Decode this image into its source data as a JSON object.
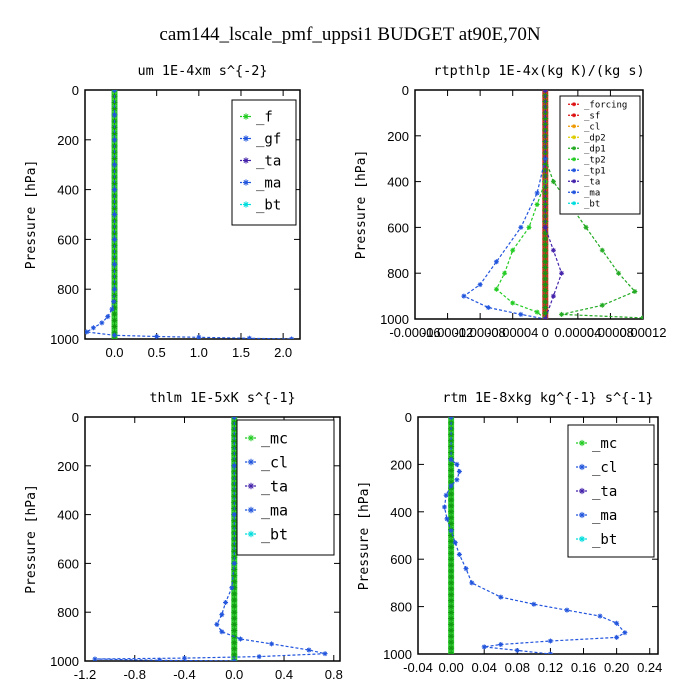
{
  "title": "cam144_lscale_pmf_uppsi1  BUDGET at90E,70N",
  "colors": {
    "green": "#22cc22",
    "blue": "#2255dd",
    "red": "#dd1111",
    "orange": "#ee9900",
    "yellow": "#ddcc00",
    "cyan": "#00dddd",
    "purple": "#4422aa"
  },
  "chart_data": [
    {
      "type": "line",
      "title": "um  1E-4xm s^{-2}",
      "xlabel": "",
      "ylabel": "Pressure [hPa]",
      "xlim": [
        -0.35,
        2.2
      ],
      "ylim": [
        1000,
        0
      ],
      "xticks": [
        0,
        0.5,
        1,
        1.5,
        2
      ],
      "xticklabels": [
        "0.0",
        "0.5",
        "1.0",
        "1.5",
        "2.0"
      ],
      "yticks": [
        0,
        200,
        400,
        600,
        800,
        1000
      ],
      "yticklabels": [
        "0",
        "200",
        "400",
        "600",
        "800",
        "1000"
      ],
      "legend_placement": "top-right",
      "series": [
        {
          "name": "_f",
          "color": "#22cc22",
          "style": "vertical-band",
          "x": 0.0
        },
        {
          "name": "_gf",
          "color": "#2255dd",
          "points": [
            [
              0,
              0
            ],
            [
              0,
              100
            ],
            [
              0,
              200
            ],
            [
              0,
              300
            ],
            [
              0,
              400
            ],
            [
              0,
              500
            ],
            [
              0,
              600
            ],
            [
              0,
              700
            ],
            [
              0,
              800
            ],
            [
              -0.01,
              850
            ],
            [
              -0.03,
              880
            ],
            [
              -0.08,
              910
            ],
            [
              -0.15,
              935
            ],
            [
              -0.25,
              955
            ],
            [
              -0.33,
              972
            ],
            [
              0,
              985
            ],
            [
              0.5,
              990
            ],
            [
              1.0,
              993
            ],
            [
              1.6,
              997
            ],
            [
              2.1,
              1000
            ]
          ]
        },
        {
          "name": "_ta",
          "color": "#4422aa",
          "points": []
        },
        {
          "name": "_ma",
          "color": "#2255dd",
          "points": []
        },
        {
          "name": "_bt",
          "color": "#00dddd",
          "points": []
        }
      ]
    },
    {
      "type": "line",
      "title": "rtpthlp  1E-4x(kg K)/(kg s)",
      "xlabel": "",
      "ylabel": "Pressure [hPa]",
      "xlim": [
        -0.00016,
        0.00012
      ],
      "ylim": [
        1000,
        0
      ],
      "xticks": [
        -0.00016,
        -0.00012,
        -8e-05,
        -4e-05,
        0,
        4e-05,
        8e-05,
        0.00012
      ],
      "xticklabels": [
        "-0.00016",
        "-0.00012",
        "-0.00008",
        "-0.00004",
        "0",
        "0.00004",
        "0.00008",
        "0.00012"
      ],
      "yticks": [
        0,
        200,
        400,
        600,
        800,
        1000
      ],
      "yticklabels": [
        "0",
        "200",
        "400",
        "600",
        "800",
        "1000"
      ],
      "legend_placement": "top-right",
      "series": [
        {
          "name": "_forcing",
          "color": "#dd1111",
          "style": "vertical-band",
          "x": 0.0
        },
        {
          "name": "_sf",
          "color": "#dd1111",
          "points": []
        },
        {
          "name": "_cl",
          "color": "#ee9900",
          "points": []
        },
        {
          "name": "_dp2",
          "color": "#ddcc00",
          "points": []
        },
        {
          "name": "_dp1",
          "color": "#22aa22",
          "points": [
            [
              0,
              0
            ],
            [
              0,
              300
            ],
            [
              1e-05,
              400
            ],
            [
              3e-05,
              500
            ],
            [
              5e-05,
              600
            ],
            [
              7e-05,
              700
            ],
            [
              9e-05,
              800
            ],
            [
              0.00011,
              880
            ],
            [
              7e-05,
              940
            ],
            [
              2e-05,
              980
            ],
            [
              0.00012,
              995
            ]
          ]
        },
        {
          "name": "_tp2",
          "color": "#22cc22",
          "points": [
            [
              0,
              0
            ],
            [
              0,
              400
            ],
            [
              -1e-05,
              500
            ],
            [
              -2e-05,
              600
            ],
            [
              -4e-05,
              700
            ],
            [
              -5e-05,
              800
            ],
            [
              -6e-05,
              870
            ],
            [
              -4e-05,
              930
            ],
            [
              -1e-05,
              970
            ],
            [
              0,
              1000
            ]
          ]
        },
        {
          "name": "_tp1",
          "color": "#2255dd",
          "points": [
            [
              0,
              0
            ],
            [
              0,
              300
            ],
            [
              -1e-05,
              450
            ],
            [
              -3e-05,
              600
            ],
            [
              -6e-05,
              750
            ],
            [
              -8e-05,
              850
            ],
            [
              -0.0001,
              900
            ],
            [
              -7e-05,
              950
            ],
            [
              -3e-05,
              980
            ],
            [
              0,
              1000
            ]
          ]
        },
        {
          "name": "_ta",
          "color": "#4422aa",
          "points": [
            [
              0,
              0
            ],
            [
              0,
              600
            ],
            [
              1e-05,
              700
            ],
            [
              2e-05,
              800
            ],
            [
              1e-05,
              900
            ],
            [
              0,
              1000
            ]
          ]
        },
        {
          "name": "_ma",
          "color": "#2255dd",
          "points": []
        },
        {
          "name": "_bt",
          "color": "#00dddd",
          "points": []
        }
      ]
    },
    {
      "type": "line",
      "title": "thlm  1E-5xK s^{-1}",
      "xlabel": "",
      "ylabel": "Pressure [hPa]",
      "xlim": [
        -1.2,
        0.85
      ],
      "ylim": [
        1000,
        0
      ],
      "xticks": [
        -1.2,
        -0.8,
        -0.4,
        0,
        0.4,
        0.8
      ],
      "xticklabels": [
        "-1.2",
        "-0.8",
        "-0.4",
        "0.0",
        "0.4",
        "0.8"
      ],
      "yticks": [
        0,
        200,
        400,
        600,
        800,
        1000
      ],
      "yticklabels": [
        "0",
        "200",
        "400",
        "600",
        "800",
        "1000"
      ],
      "legend_placement": "top-right",
      "series": [
        {
          "name": "_mc",
          "color": "#22cc22",
          "style": "vertical-band",
          "x": 0.0
        },
        {
          "name": "_cl",
          "color": "#2255dd",
          "points": [
            [
              0,
              0
            ],
            [
              0,
              200
            ],
            [
              0,
              400
            ],
            [
              0,
              600
            ],
            [
              -0.02,
              700
            ],
            [
              -0.07,
              760
            ],
            [
              -0.1,
              810
            ],
            [
              -0.14,
              850
            ],
            [
              -0.1,
              880
            ],
            [
              0.05,
              910
            ],
            [
              0.3,
              930
            ],
            [
              0.6,
              955
            ],
            [
              0.73,
              970
            ],
            [
              0.2,
              982
            ],
            [
              -0.4,
              988
            ],
            [
              -1.12,
              992
            ],
            [
              -0.6,
              997
            ],
            [
              0,
              1000
            ]
          ]
        },
        {
          "name": "_ta",
          "color": "#4422aa",
          "points": []
        },
        {
          "name": "_ma",
          "color": "#2255dd",
          "points": []
        },
        {
          "name": "_bt",
          "color": "#00dddd",
          "points": []
        }
      ]
    },
    {
      "type": "line",
      "title": "rtm  1E-8xkg kg^{-1} s^{-1}",
      "xlabel": "",
      "ylabel": "Pressure [hPa]",
      "xlim": [
        -0.04,
        0.25
      ],
      "ylim": [
        1000,
        0
      ],
      "xticks": [
        -0.04,
        0,
        0.04,
        0.08,
        0.12,
        0.16,
        0.2,
        0.24
      ],
      "xticklabels": [
        "-0.04",
        "0.00",
        "0.04",
        "0.08",
        "0.12",
        "0.16",
        "0.20",
        "0.24"
      ],
      "yticks": [
        0,
        200,
        400,
        600,
        800,
        1000
      ],
      "yticklabels": [
        "0",
        "200",
        "400",
        "600",
        "800",
        "1000"
      ],
      "legend_placement": "top-right",
      "series": [
        {
          "name": "_mc",
          "color": "#22cc22",
          "style": "vertical-band",
          "x": 0.0
        },
        {
          "name": "_cl",
          "color": "#2255dd",
          "points": [
            [
              0,
              0
            ],
            [
              0,
              180
            ],
            [
              0.007,
              200
            ],
            [
              0.01,
              230
            ],
            [
              0.007,
              265
            ],
            [
              0,
              290
            ],
            [
              -0.006,
              330
            ],
            [
              -0.008,
              380
            ],
            [
              -0.005,
              430
            ],
            [
              0,
              480
            ],
            [
              0.005,
              530
            ],
            [
              0.01,
              580
            ],
            [
              0.018,
              640
            ],
            [
              0.025,
              700
            ],
            [
              0.06,
              760
            ],
            [
              0.1,
              790
            ],
            [
              0.14,
              815
            ],
            [
              0.18,
              840
            ],
            [
              0.2,
              870
            ],
            [
              0.21,
              910
            ],
            [
              0.2,
              930
            ],
            [
              0.12,
              945
            ],
            [
              0.06,
              960
            ],
            [
              0.04,
              970
            ],
            [
              0.08,
              985
            ],
            [
              0.12,
              1000
            ]
          ]
        },
        {
          "name": "_ta",
          "color": "#4422aa",
          "points": []
        },
        {
          "name": "_ma",
          "color": "#2255dd",
          "points": []
        },
        {
          "name": "_bt",
          "color": "#00dddd",
          "points": []
        }
      ]
    }
  ]
}
